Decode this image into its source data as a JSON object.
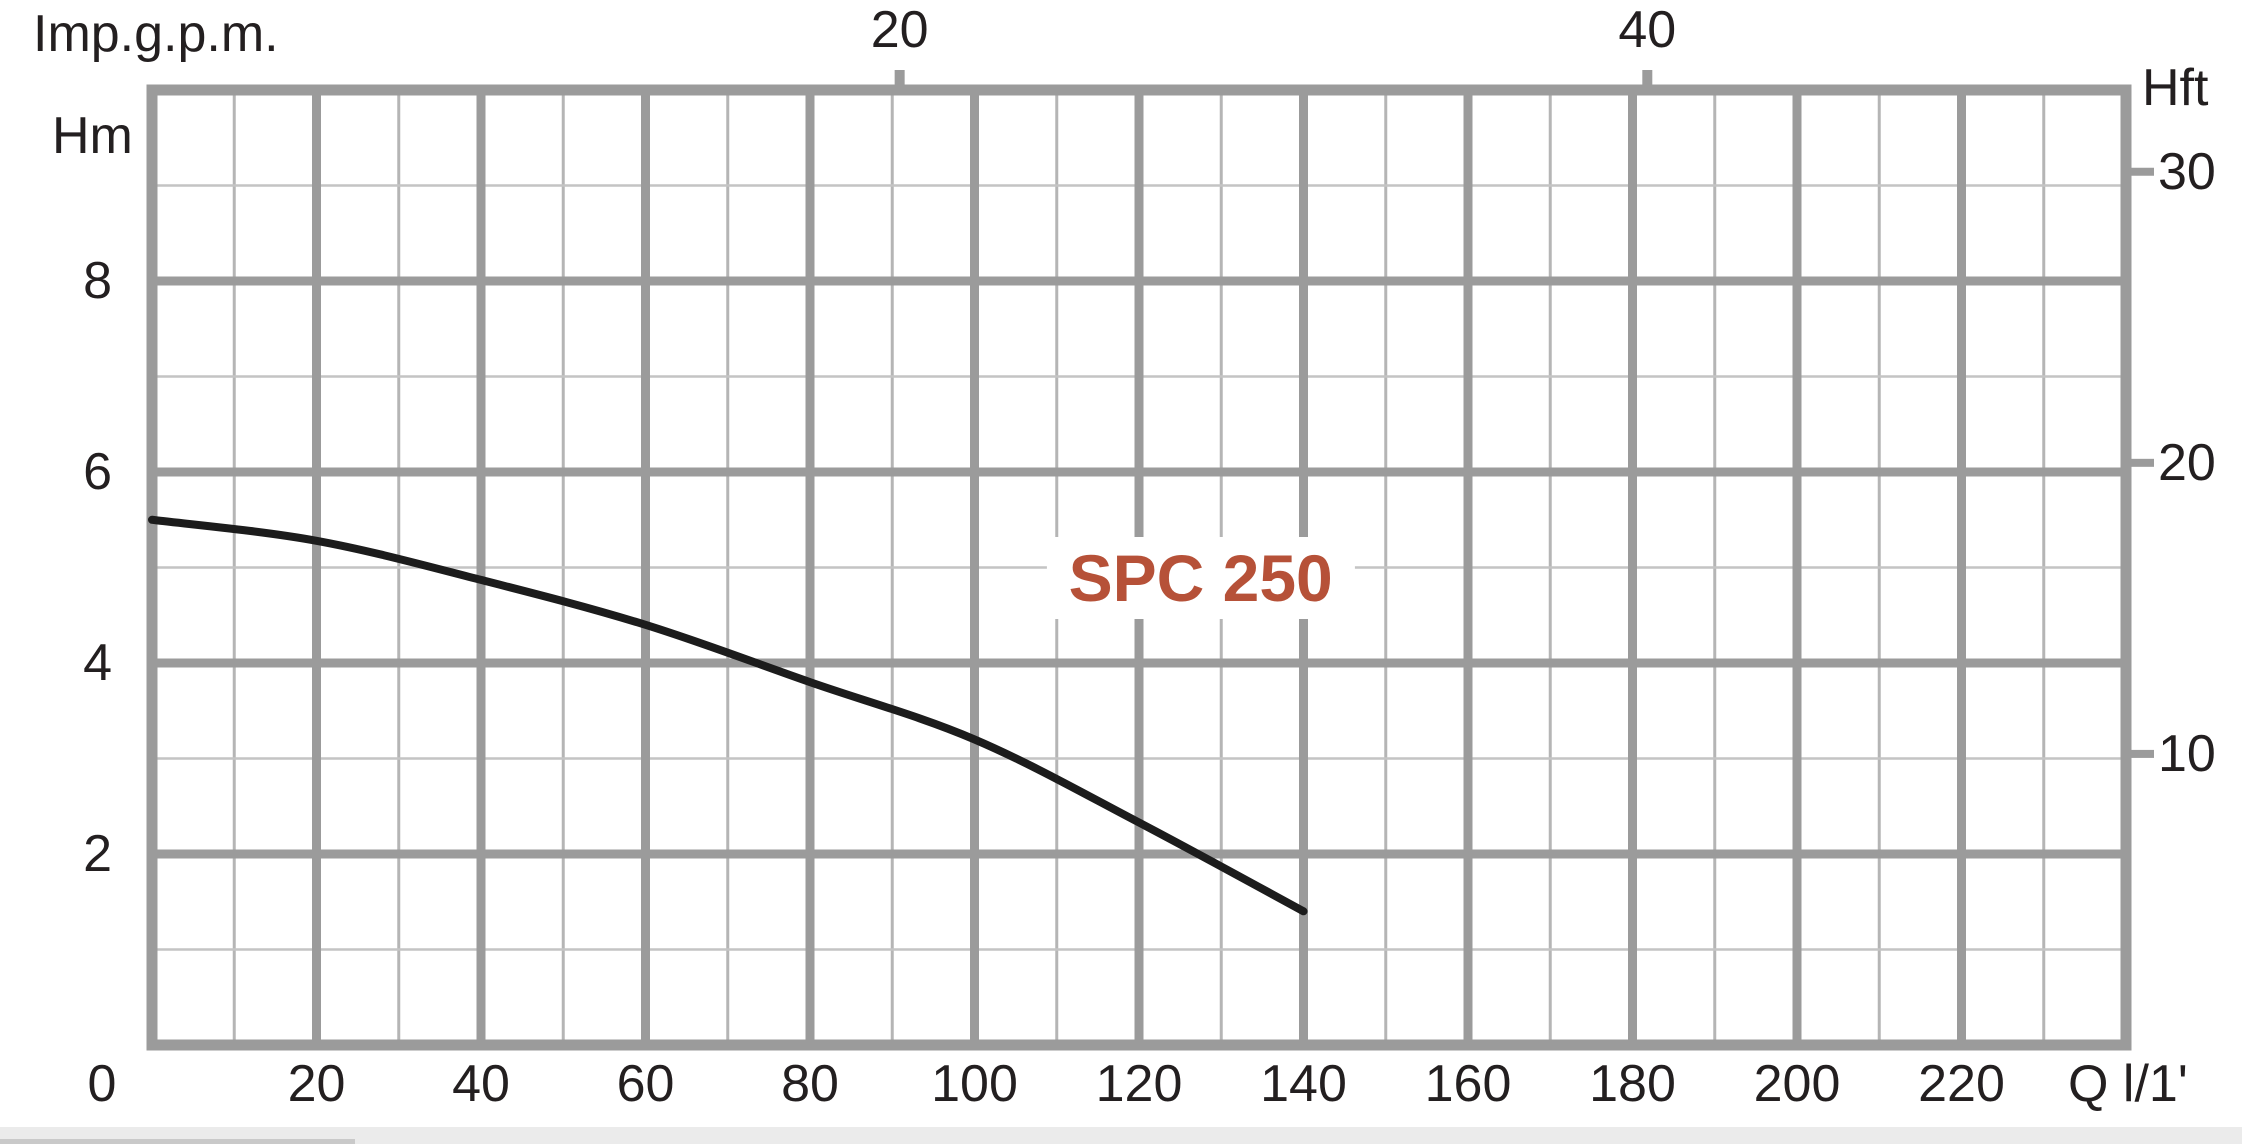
{
  "chart_data": {
    "type": "line",
    "title": "",
    "series": [
      {
        "name": "SPC 250",
        "color": "#b65138",
        "points": [
          {
            "q_lmin": 0,
            "h_m": 5.5
          },
          {
            "q_lmin": 20,
            "h_m": 5.28
          },
          {
            "q_lmin": 40,
            "h_m": 4.87
          },
          {
            "q_lmin": 60,
            "h_m": 4.4
          },
          {
            "q_lmin": 80,
            "h_m": 3.8
          },
          {
            "q_lmin": 100,
            "h_m": 3.2
          },
          {
            "q_lmin": 120,
            "h_m": 2.33
          },
          {
            "q_lmin": 140,
            "h_m": 1.4
          }
        ],
        "label_anchor": {
          "q_lmin": 127.5,
          "h_m": 4.89
        }
      }
    ],
    "axes": {
      "bottom": {
        "label": "Q l/1'",
        "min": 0,
        "max": 240,
        "major_step": 20,
        "minor_step": 10,
        "tick_labels": [
          "0",
          "20",
          "40",
          "60",
          "80",
          "100",
          "120",
          "140",
          "160",
          "180",
          "200",
          "220"
        ],
        "tick_values": [
          0,
          20,
          40,
          60,
          80,
          100,
          120,
          140,
          160,
          180,
          200,
          220
        ]
      },
      "top": {
        "label": "Imp.g.p.m.",
        "ticks": [
          {
            "label": "20",
            "q_lmin": 90.9
          },
          {
            "label": "40",
            "q_lmin": 181.8
          }
        ]
      },
      "left": {
        "label": "Hm",
        "min": 0,
        "max": 10,
        "major_step": 2,
        "minor_step": 1,
        "tick_labels": [
          "8",
          "6",
          "4",
          "2"
        ],
        "tick_values": [
          8,
          6,
          4,
          2
        ]
      },
      "right": {
        "label": "Hft",
        "ticks": [
          {
            "label": "30",
            "h_m": 9.144
          },
          {
            "label": "20",
            "h_m": 6.096
          },
          {
            "label": "10",
            "h_m": 3.048
          }
        ]
      }
    },
    "grid": "on",
    "legend_position": "inside-plot",
    "colors": {
      "grid_major": "#9b9b9b",
      "grid_minor_vertical": "#b5b5b5",
      "grid_minor_horizontal": "#c4c4c4",
      "plot_border": "#9b9b9b",
      "curve": "#1c1c1c",
      "text": "#231f20",
      "series_label": "#b65138"
    }
  }
}
